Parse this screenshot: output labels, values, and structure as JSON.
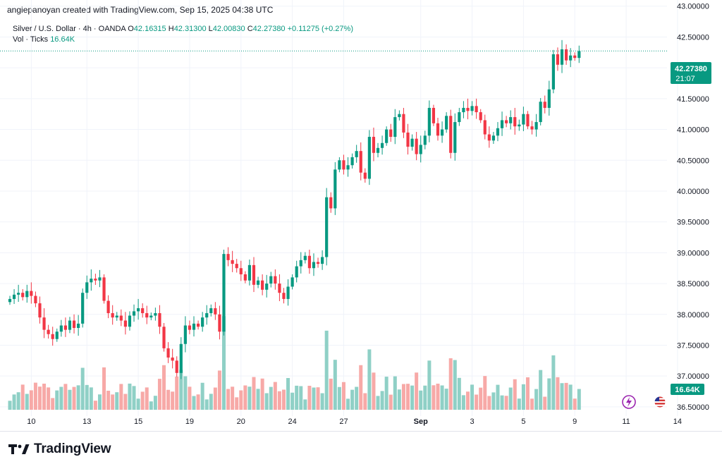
{
  "header": {
    "caption": "angiepanoyan created with TradingView.com, Sep 15, 2025 04:38 UTC"
  },
  "legend": {
    "symbol": "Silver / U.S. Dollar · 4h · OANDA",
    "open_key": "O",
    "open": "42.16315",
    "high_key": "H",
    "high": "42.31300",
    "low_key": "L",
    "low": "42.00830",
    "close_key": "C",
    "close": "42.27380",
    "change": "+0.11275 (+0.27%)",
    "vol_label": "Vol · Ticks",
    "vol_value": "16.64K"
  },
  "price_badge": {
    "price": "42.27380",
    "countdown": "21:07"
  },
  "volume_badge": "16.64K",
  "footer": {
    "brand": "TradingView"
  },
  "colors": {
    "up": "#089981",
    "down": "#f23645",
    "up_vol": "#8fd0c6",
    "down_vol": "#f7a9a7",
    "grid": "#f0f3fa",
    "text": "#131722"
  },
  "icons": [
    "lightning-icon",
    "us-flag-icon"
  ],
  "chart_data": {
    "type": "candlestick",
    "title": "Silver / U.S. Dollar · 4h · OANDA",
    "timeframe": "4h",
    "ylim": [
      36.35,
      43.1
    ],
    "y_ticks": [
      "43.00000",
      "42.50000",
      "42.00000",
      "41.50000",
      "41.00000",
      "40.50000",
      "40.00000",
      "39.50000",
      "39.00000",
      "38.50000",
      "38.00000",
      "37.50000",
      "37.00000",
      "36.50000"
    ],
    "x_ticks": [
      {
        "label": "10",
        "bar": 5
      },
      {
        "label": "13",
        "bar": 18
      },
      {
        "label": "15",
        "bar": 30
      },
      {
        "label": "19",
        "bar": 42
      },
      {
        "label": "20",
        "bar": 54
      },
      {
        "label": "24",
        "bar": 66
      },
      {
        "label": "27",
        "bar": 78
      },
      {
        "label": "Sep",
        "bar": 96
      },
      {
        "label": "3",
        "bar": 108
      },
      {
        "label": "5",
        "bar": 120
      },
      {
        "label": "9",
        "bar": 132
      },
      {
        "label": "11",
        "bar": 144
      },
      {
        "label": "14",
        "bar": 156
      }
    ],
    "last_price": 42.2738,
    "grid": true,
    "series": [
      {
        "name": "price",
        "closes": [
          38.25,
          38.32,
          38.35,
          38.28,
          38.38,
          38.3,
          38.18,
          37.95,
          37.75,
          37.68,
          37.6,
          37.72,
          37.82,
          37.75,
          37.9,
          37.78,
          37.85,
          38.35,
          38.52,
          38.58,
          38.55,
          38.6,
          38.22,
          38.02,
          37.95,
          37.98,
          37.9,
          37.8,
          37.98,
          38.05,
          38.1,
          38.02,
          37.95,
          37.98,
          38.02,
          37.8,
          37.45,
          37.3,
          37.25,
          37.05,
          37.52,
          37.82,
          37.75,
          37.85,
          37.8,
          37.95,
          38.02,
          38.1,
          38.0,
          37.72,
          38.98,
          38.88,
          38.82,
          38.75,
          38.65,
          38.55,
          38.8,
          38.48,
          38.55,
          38.4,
          38.5,
          38.62,
          38.5,
          38.35,
          38.25,
          38.45,
          38.6,
          38.78,
          38.88,
          38.95,
          38.75,
          38.85,
          38.82,
          38.93,
          39.9,
          39.72,
          40.35,
          40.5,
          40.35,
          40.42,
          40.55,
          40.65,
          40.3,
          40.2,
          40.88,
          40.62,
          40.7,
          40.78,
          41.0,
          40.88,
          41.2,
          41.25,
          40.95,
          40.72,
          40.85,
          40.6,
          40.75,
          40.9,
          41.35,
          41.1,
          40.9,
          41.0,
          41.22,
          40.62,
          41.12,
          41.28,
          41.35,
          41.3,
          41.38,
          41.28,
          41.15,
          40.92,
          40.82,
          40.9,
          41.02,
          41.15,
          41.1,
          41.2,
          41.05,
          41.08,
          41.25,
          41.05,
          41.0,
          41.12,
          41.45,
          41.35,
          41.65,
          42.22,
          42.05,
          42.3,
          42.12,
          42.2,
          42.16,
          42.27
        ]
      }
    ]
  }
}
